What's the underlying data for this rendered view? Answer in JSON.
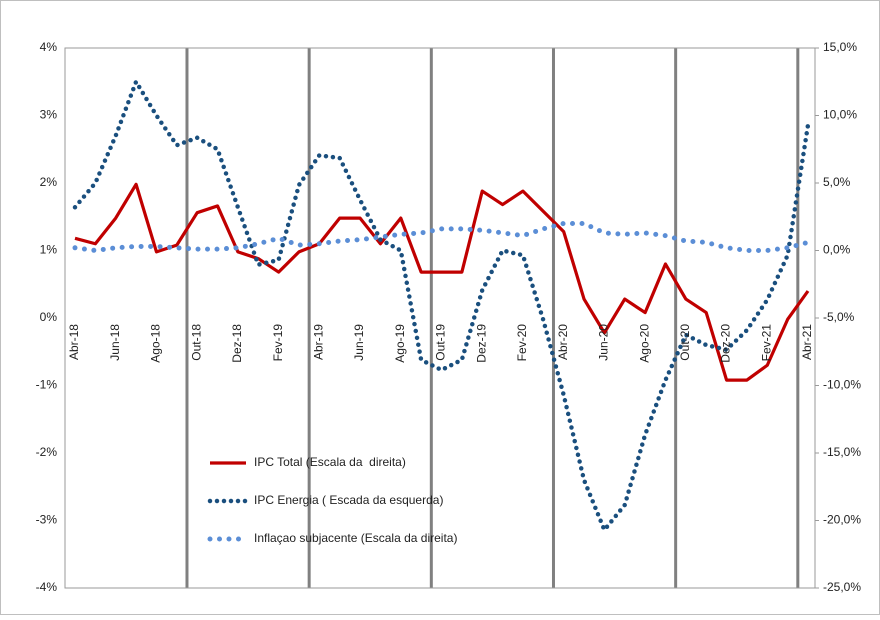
{
  "chart_data": {
    "type": "line",
    "categories": [
      "Abr-18",
      null,
      "Jun-18",
      null,
      "Ago-18",
      null,
      "Out-18",
      null,
      "Dez-18",
      null,
      "Fev-19",
      null,
      "Abr-19",
      null,
      "Jun-19",
      null,
      "Ago-19",
      null,
      "Out-19",
      null,
      "Dez-19",
      null,
      "Fev-20",
      null,
      "Abr-20",
      null,
      "Jun-20",
      null,
      "Ago-20",
      null,
      "Out-20",
      null,
      "Dez-20",
      null,
      "Fev-21",
      null,
      "Abr-21"
    ],
    "ylim": [
      -4,
      4
    ],
    "yticks": [
      {
        "value": -4,
        "label": "-4%"
      },
      {
        "value": -3,
        "label": "-3%"
      },
      {
        "value": -2,
        "label": "-2%"
      },
      {
        "value": -1,
        "label": "-1%"
      },
      {
        "value": 0,
        "label": "0%"
      },
      {
        "value": 1,
        "label": "1%"
      },
      {
        "value": 2,
        "label": "2%"
      },
      {
        "value": 3,
        "label": "3%"
      },
      {
        "value": 4,
        "label": "4%"
      }
    ],
    "y2lim": [
      -25,
      15
    ],
    "y2ticks": [
      {
        "value": -25,
        "label": "-25,0%"
      },
      {
        "value": -20,
        "label": "-20,0%"
      },
      {
        "value": -15,
        "label": "-15,0%"
      },
      {
        "value": -10,
        "label": "-10,0%"
      },
      {
        "value": -5,
        "label": "-5,0%"
      },
      {
        "value": 0,
        "label": "0,0%"
      },
      {
        "value": 5,
        "label": "5,0%"
      },
      {
        "value": 10,
        "label": "10,0%"
      },
      {
        "value": 15,
        "label": "15,0%"
      }
    ],
    "grid": true,
    "series": [
      {
        "name": "IPC Total (Escala da  direita)",
        "color": "#c00000",
        "axis": "y2",
        "style": "solid",
        "values": [
          0.9,
          0.5,
          2.4,
          4.9,
          -0.1,
          0.4,
          2.8,
          3.3,
          -0.1,
          -0.6,
          -1.6,
          -0.1,
          0.5,
          2.4,
          2.4,
          0.5,
          2.4,
          -1.6,
          -1.6,
          -1.6,
          4.4,
          3.4,
          4.4,
          2.9,
          1.4,
          -3.6,
          -6.1,
          -3.6,
          -4.6,
          -1.0,
          -3.6,
          -4.6,
          -9.6,
          -9.6,
          -8.5,
          -5.1,
          -3.0
        ]
      },
      {
        "name": "IPC Energia ( Escada da esquerda)",
        "color": "#1a4f7e",
        "axis": "y",
        "style": "dotted",
        "values": [
          1.64,
          2.0,
          2.7,
          3.5,
          3.0,
          2.56,
          2.67,
          2.5,
          1.64,
          0.79,
          0.86,
          1.97,
          2.41,
          2.37,
          1.75,
          1.16,
          1.0,
          -0.62,
          -0.77,
          -0.62,
          0.41,
          1.0,
          0.93,
          -0.03,
          -1.14,
          -2.4,
          -3.14,
          -2.77,
          -1.73,
          -0.92,
          -0.25,
          -0.4,
          -0.47,
          -0.18,
          0.27,
          0.93,
          2.86
        ]
      },
      {
        "name": "Inflaçao subjacente (Escala da direita)",
        "color": "#5b8ed6",
        "axis": "y2",
        "style": "dotted",
        "values": [
          0.2,
          0.0,
          0.2,
          0.3,
          0.3,
          0.2,
          0.1,
          0.1,
          0.2,
          0.5,
          0.9,
          0.4,
          0.5,
          0.7,
          0.8,
          1.0,
          1.2,
          1.3,
          1.6,
          1.6,
          1.5,
          1.3,
          1.1,
          1.6,
          2.0,
          2.0,
          1.3,
          1.2,
          1.3,
          1.1,
          0.7,
          0.6,
          0.2,
          0.0,
          0.0,
          0.2,
          0.6
        ]
      }
    ]
  }
}
